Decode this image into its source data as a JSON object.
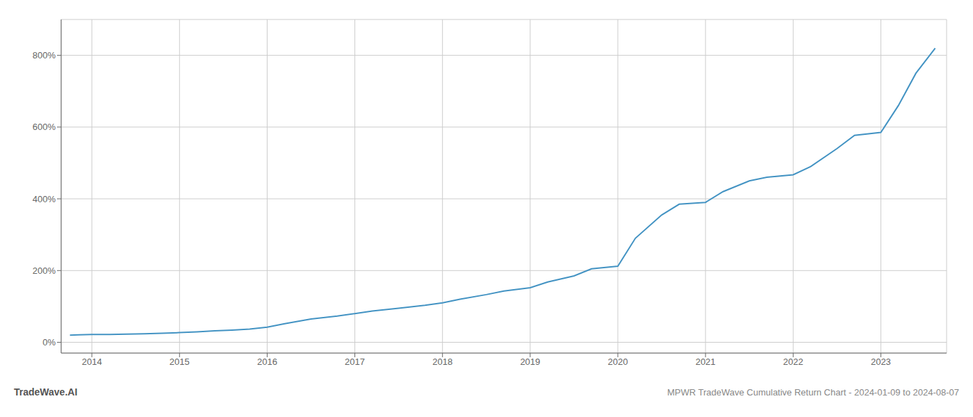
{
  "chart_data": {
    "type": "line",
    "title": "MPWR TradeWave Cumulative Return Chart - 2024-01-09 to 2024-08-07",
    "annotations": [
      {
        "text": "TradeWave.AI"
      }
    ],
    "color": "#4393c3",
    "x": [
      2013.75,
      2013.85,
      2014.0,
      2014.2,
      2014.4,
      2014.6,
      2014.8,
      2015.0,
      2015.2,
      2015.4,
      2015.6,
      2015.8,
      2016.0,
      2016.2,
      2016.5,
      2016.8,
      2017.0,
      2017.2,
      2017.5,
      2017.8,
      2018.0,
      2018.2,
      2018.5,
      2018.7,
      2019.0,
      2019.2,
      2019.5,
      2019.7,
      2020.0,
      2020.2,
      2020.5,
      2020.7,
      2021.0,
      2021.2,
      2021.5,
      2021.7,
      2022.0,
      2022.2,
      2022.5,
      2022.7,
      2023.0,
      2023.2,
      2023.4,
      2023.62
    ],
    "values": [
      20,
      21,
      22,
      22,
      23,
      24,
      25,
      27,
      29,
      32,
      34,
      37,
      42,
      52,
      65,
      73,
      80,
      87,
      95,
      103,
      110,
      120,
      133,
      143,
      152,
      168,
      185,
      205,
      212,
      290,
      355,
      385,
      390,
      420,
      450,
      460,
      467,
      490,
      540,
      577,
      585,
      660,
      750,
      820
    ],
    "xlim": [
      2013.65,
      2023.75
    ],
    "xticks": [
      2014,
      2015,
      2016,
      2017,
      2018,
      2019,
      2020,
      2021,
      2022,
      2023
    ],
    "ylim": [
      -30,
      900
    ],
    "yticks": [
      {
        "value": 0,
        "label": "0%"
      },
      {
        "value": 200,
        "label": "200%"
      },
      {
        "value": 400,
        "label": "400%"
      },
      {
        "value": 600,
        "label": "600%"
      },
      {
        "value": 800,
        "label": "800%"
      }
    ],
    "grid": true
  }
}
